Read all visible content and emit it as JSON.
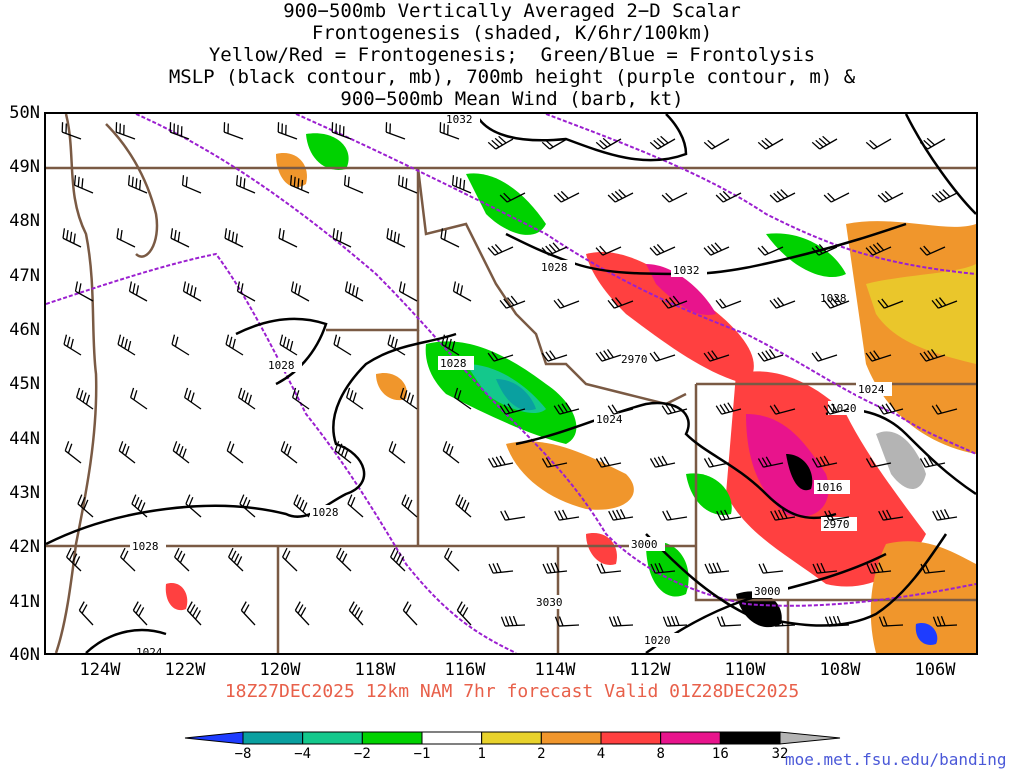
{
  "title_lines": [
    "900−500mb Vertically Averaged 2−D Scalar",
    "Frontogenesis (shaded, K/6hr/100km)",
    "Yellow/Red = Frontogenesis;  Green/Blue = Frontolysis",
    "MSLP (black contour, mb), 700mb height (purple contour, m) &",
    "900−500mb Mean Wind (barb, kt)"
  ],
  "lat_labels": [
    "50N",
    "49N",
    "48N",
    "47N",
    "46N",
    "45N",
    "44N",
    "43N",
    "42N",
    "41N",
    "40N"
  ],
  "lon_labels": [
    "124W",
    "122W",
    "120W",
    "118W",
    "116W",
    "114W",
    "112W",
    "110W",
    "108W",
    "106W"
  ],
  "footer": "18Z27DEC2025 12km NAM 7hr forecast Valid 01Z28DEC2025",
  "scale": {
    "labels": [
      "−8",
      "−4",
      "−2",
      "−1",
      "1",
      "2",
      "4",
      "8",
      "16",
      "32"
    ],
    "colors": [
      "#1e3cff",
      "#0aa0a0",
      "#14c88c",
      "#00d200",
      "#ffffff",
      "#e8d22c",
      "#f0962c",
      "#ff4040",
      "#e8148c",
      "#000000",
      "#b4b4b4"
    ]
  },
  "credit": "moe.met.fsu.edu/banding",
  "mslp_labels": [
    "1032",
    "1028",
    "1032",
    "1028",
    "1028",
    "1028",
    "1028",
    "1028",
    "1024",
    "1024",
    "1020",
    "1016",
    "1020",
    "1024"
  ],
  "height_labels": [
    "2970",
    "3000",
    "3030",
    "3000",
    "2970"
  ],
  "colors": {
    "mslp": "#000000",
    "height": "#9b1fd0",
    "borders": "#7a5a44",
    "footer": "#e8604a",
    "credit": "#4a58d8"
  }
}
